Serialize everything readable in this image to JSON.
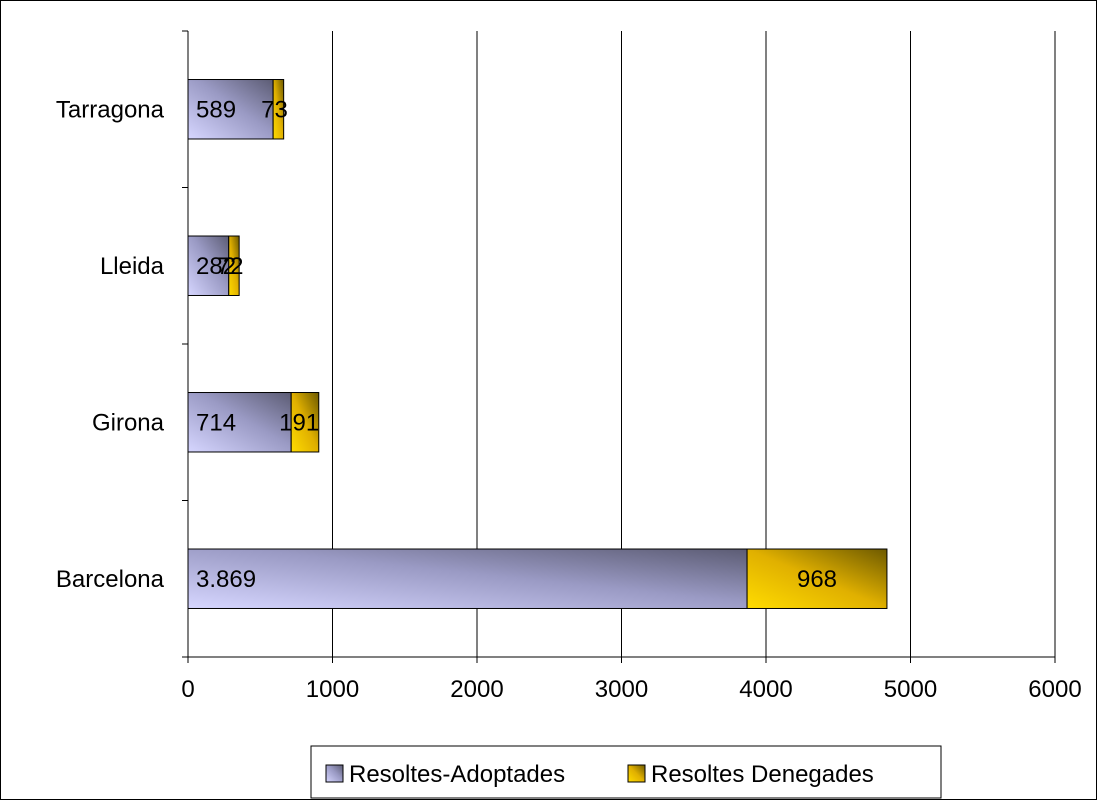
{
  "chart_data": {
    "type": "bar",
    "orientation": "horizontal",
    "stacked": true,
    "categories": [
      "Tarragona",
      "Lleida",
      "Girona",
      "Barcelona"
    ],
    "series": [
      {
        "name": "Resoltes-Adoptades",
        "values": [
          589,
          282,
          714,
          3869
        ],
        "labels": [
          "589",
          "282",
          "714",
          "3.869"
        ],
        "color": "#8c8cb4"
      },
      {
        "name": "Resoltes Denegades",
        "values": [
          73,
          72,
          191,
          968
        ],
        "labels": [
          "73",
          "72",
          "191",
          "968"
        ],
        "color": "#e8b800"
      }
    ],
    "xlim": [
      0,
      6000
    ],
    "xticks": [
      "0",
      "1000",
      "2000",
      "3000",
      "4000",
      "5000",
      "6000"
    ],
    "grid": "vertical",
    "legend_position": "bottom"
  }
}
